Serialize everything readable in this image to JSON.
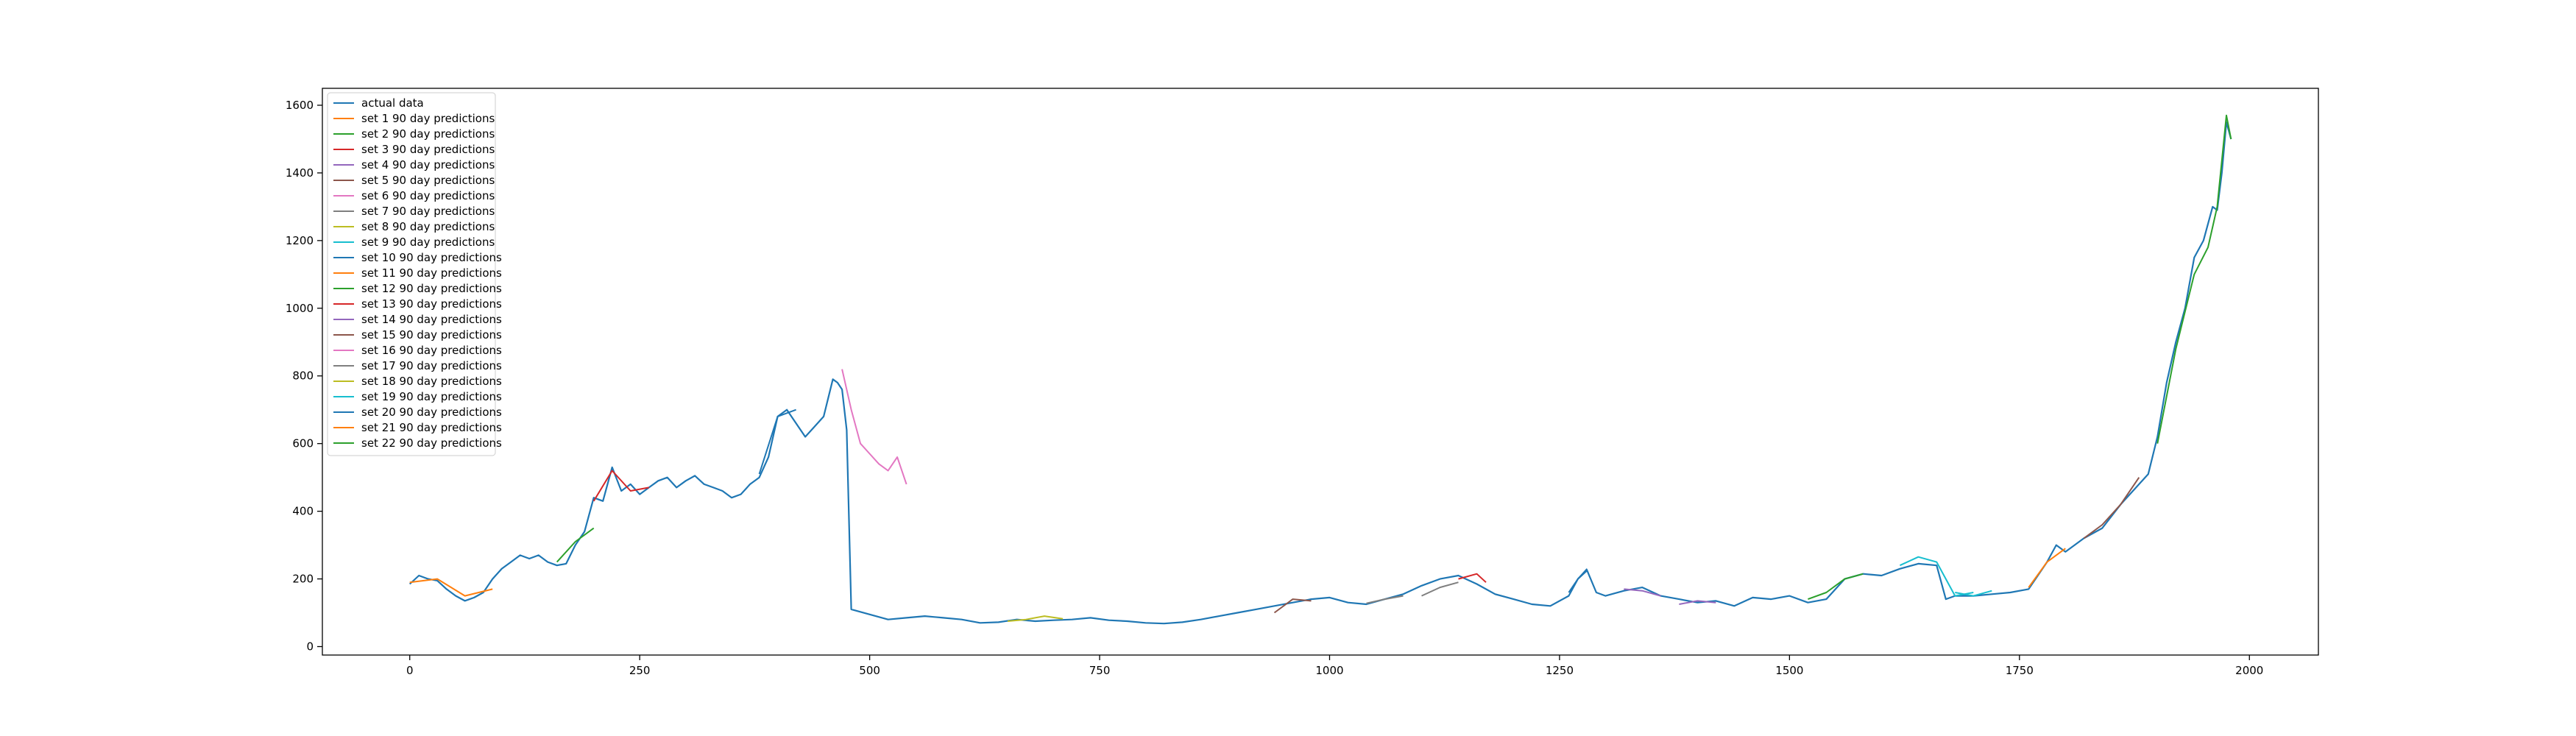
{
  "chart_data": {
    "type": "line",
    "title": "",
    "xlabel": "",
    "ylabel": "",
    "xlim": [
      -95,
      2075
    ],
    "ylim": [
      -25,
      1650
    ],
    "xticks": [
      0,
      250,
      500,
      750,
      1000,
      1250,
      1500,
      1750,
      2000
    ],
    "yticks": [
      0,
      200,
      400,
      600,
      800,
      1000,
      1200,
      1400,
      1600
    ],
    "legend_position": "upper-left",
    "grid": false,
    "series": [
      {
        "name": "actual data",
        "color": "#1f77b4",
        "x": [
          0,
          10,
          20,
          30,
          40,
          50,
          60,
          70,
          80,
          90,
          100,
          110,
          120,
          130,
          140,
          150,
          160,
          170,
          180,
          190,
          200,
          210,
          220,
          230,
          240,
          250,
          260,
          270,
          280,
          290,
          300,
          310,
          320,
          330,
          340,
          350,
          360,
          370,
          380,
          390,
          400,
          410,
          420,
          430,
          440,
          450,
          460,
          465,
          470,
          475,
          480,
          500,
          520,
          540,
          560,
          580,
          600,
          620,
          640,
          660,
          680,
          700,
          720,
          740,
          760,
          780,
          800,
          820,
          840,
          860,
          880,
          900,
          920,
          940,
          960,
          980,
          1000,
          1020,
          1040,
          1060,
          1080,
          1100,
          1120,
          1140,
          1160,
          1180,
          1200,
          1220,
          1240,
          1260,
          1270,
          1280,
          1290,
          1300,
          1320,
          1340,
          1360,
          1380,
          1400,
          1420,
          1440,
          1460,
          1480,
          1500,
          1520,
          1540,
          1560,
          1580,
          1600,
          1620,
          1640,
          1660,
          1670,
          1680,
          1700,
          1720,
          1740,
          1760,
          1780,
          1790,
          1800,
          1820,
          1840,
          1860,
          1880,
          1890,
          1900,
          1910,
          1920,
          1930,
          1940,
          1950,
          1960,
          1965,
          1970,
          1975,
          1980
        ],
        "y": [
          185,
          210,
          200,
          195,
          170,
          150,
          135,
          145,
          160,
          200,
          230,
          250,
          270,
          260,
          270,
          250,
          240,
          245,
          300,
          340,
          440,
          430,
          530,
          460,
          480,
          450,
          470,
          490,
          500,
          470,
          490,
          505,
          480,
          470,
          460,
          440,
          450,
          480,
          500,
          560,
          680,
          700,
          660,
          620,
          650,
          680,
          790,
          780,
          760,
          640,
          110,
          95,
          80,
          85,
          90,
          85,
          80,
          70,
          72,
          80,
          75,
          78,
          80,
          85,
          78,
          75,
          70,
          68,
          72,
          80,
          90,
          100,
          110,
          120,
          130,
          140,
          145,
          130,
          125,
          140,
          155,
          180,
          200,
          210,
          185,
          155,
          140,
          125,
          120,
          150,
          200,
          225,
          160,
          150,
          165,
          175,
          150,
          140,
          130,
          135,
          120,
          145,
          140,
          150,
          130,
          140,
          200,
          215,
          210,
          230,
          245,
          240,
          140,
          150,
          150,
          155,
          160,
          170,
          250,
          300,
          280,
          320,
          350,
          420,
          480,
          510,
          620,
          780,
          900,
          1000,
          1150,
          1200,
          1300,
          1290,
          1400,
          1550,
          1500
        ]
      },
      {
        "name": "set 1 90 day predictions",
        "color": "#ff7f0e",
        "x": [
          0,
          30,
          60,
          90
        ],
        "y": [
          190,
          200,
          150,
          170
        ]
      },
      {
        "name": "set 2 90 day predictions",
        "color": "#2ca02c",
        "x": [
          1900,
          1920,
          1940,
          1955,
          1965,
          1975,
          1980
        ],
        "y": [
          600,
          880,
          1100,
          1180,
          1300,
          1570,
          1500
        ]
      },
      {
        "name": "set 3 90 day predictions",
        "color": "#d62728",
        "x": [
          200,
          220,
          240,
          260
        ],
        "y": [
          430,
          520,
          460,
          470
        ]
      },
      {
        "name": "set 4 90 day predictions",
        "color": "#9467bd",
        "x": [
          1380,
          1400,
          1420
        ],
        "y": [
          125,
          135,
          130
        ]
      },
      {
        "name": "set 5 90 day predictions",
        "color": "#8c564b",
        "x": [
          940,
          960,
          980
        ],
        "y": [
          100,
          140,
          135
        ]
      },
      {
        "name": "set 6 90 day predictions",
        "color": "#e377c2",
        "x": [
          470,
          480,
          490,
          500,
          510,
          520,
          530,
          540
        ],
        "y": [
          820,
          700,
          600,
          570,
          540,
          520,
          560,
          480
        ]
      },
      {
        "name": "set 7 90 day predictions",
        "color": "#7f7f7f",
        "x": [
          1100,
          1120,
          1140
        ],
        "y": [
          150,
          175,
          190
        ]
      },
      {
        "name": "set 8 90 day predictions",
        "color": "#bcbd22",
        "x": [
          650,
          670,
          690,
          710
        ],
        "y": [
          75,
          80,
          90,
          82
        ]
      },
      {
        "name": "set 9 90 day predictions",
        "color": "#17becf",
        "x": [
          1620,
          1640,
          1660,
          1680,
          1700
        ],
        "y": [
          240,
          265,
          250,
          150,
          160
        ]
      },
      {
        "name": "set 10 90 day predictions",
        "color": "#1f77b4",
        "x": [
          380,
          400,
          420
        ],
        "y": [
          510,
          680,
          700
        ]
      },
      {
        "name": "set 11 90 day predictions",
        "color": "#ff7f0e",
        "x": [
          1760,
          1780,
          1800
        ],
        "y": [
          175,
          250,
          290
        ]
      },
      {
        "name": "set 12 90 day predictions",
        "color": "#2ca02c",
        "x": [
          1520,
          1540,
          1560,
          1580
        ],
        "y": [
          140,
          160,
          200,
          215
        ]
      },
      {
        "name": "set 13 90 day predictions",
        "color": "#d62728",
        "x": [
          1140,
          1160,
          1170
        ],
        "y": [
          200,
          215,
          190
        ]
      },
      {
        "name": "set 14 90 day predictions",
        "color": "#9467bd",
        "x": [
          1320,
          1340,
          1360
        ],
        "y": [
          170,
          165,
          150
        ]
      },
      {
        "name": "set 15 90 day predictions",
        "color": "#8c564b",
        "x": [
          1820,
          1840,
          1860,
          1880
        ],
        "y": [
          320,
          360,
          420,
          500
        ]
      },
      {
        "name": "set 16 90 day predictions",
        "color": "#e377c2",
        "x": [],
        "y": []
      },
      {
        "name": "set 17 90 day predictions",
        "color": "#7f7f7f",
        "x": [
          1040,
          1060,
          1080
        ],
        "y": [
          128,
          140,
          150
        ]
      },
      {
        "name": "set 18 90 day predictions",
        "color": "#bcbd22",
        "x": [],
        "y": []
      },
      {
        "name": "set 19 90 day predictions",
        "color": "#17becf",
        "x": [
          1680,
          1700,
          1720
        ],
        "y": [
          160,
          150,
          165
        ]
      },
      {
        "name": "set 20 90 day predictions",
        "color": "#1f77b4",
        "x": [
          1260,
          1270,
          1280
        ],
        "y": [
          160,
          200,
          230
        ]
      },
      {
        "name": "set 21 90 day predictions",
        "color": "#ff7f0e",
        "x": [],
        "y": []
      },
      {
        "name": "set 22 90 day predictions",
        "color": "#2ca02c",
        "x": [
          160,
          180,
          200
        ],
        "y": [
          250,
          310,
          350
        ]
      }
    ]
  }
}
